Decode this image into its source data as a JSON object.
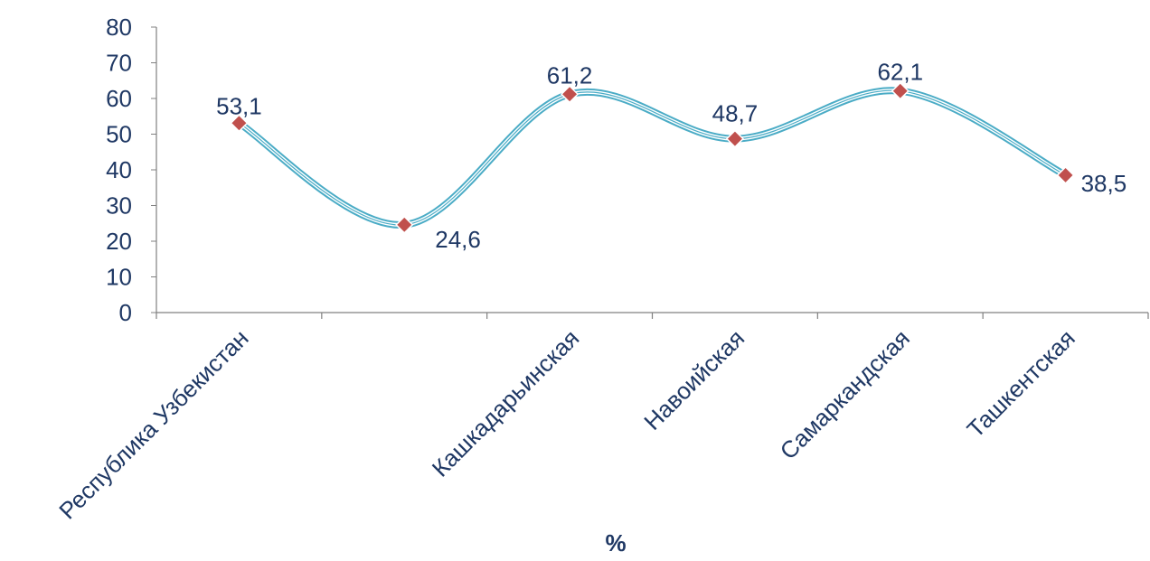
{
  "chart_data": {
    "type": "line",
    "smooth": true,
    "categories": [
      "Республика Узбекистан",
      "",
      "Кашкадарьинская",
      "Навоийская",
      "Самаркандская",
      "Ташкентская"
    ],
    "values": [
      53.1,
      24.6,
      61.2,
      48.7,
      62.1,
      38.5
    ],
    "data_labels": [
      "53,1",
      "24,6",
      "61,2",
      "48,7",
      "62,1",
      "38,5"
    ],
    "yticks": [
      "0",
      "10",
      "20",
      "30",
      "40",
      "50",
      "60",
      "70",
      "80"
    ],
    "ylim": [
      0,
      80
    ],
    "xlabel": "%",
    "ylabel": "",
    "title": "",
    "grid": false,
    "legend": "none",
    "colors": {
      "line": "#4bacc6",
      "line_inner": "#ffffff",
      "marker": "#c0504d",
      "marker_border": "#ffffff",
      "axis": "#808080",
      "text": "#1f3864"
    }
  }
}
